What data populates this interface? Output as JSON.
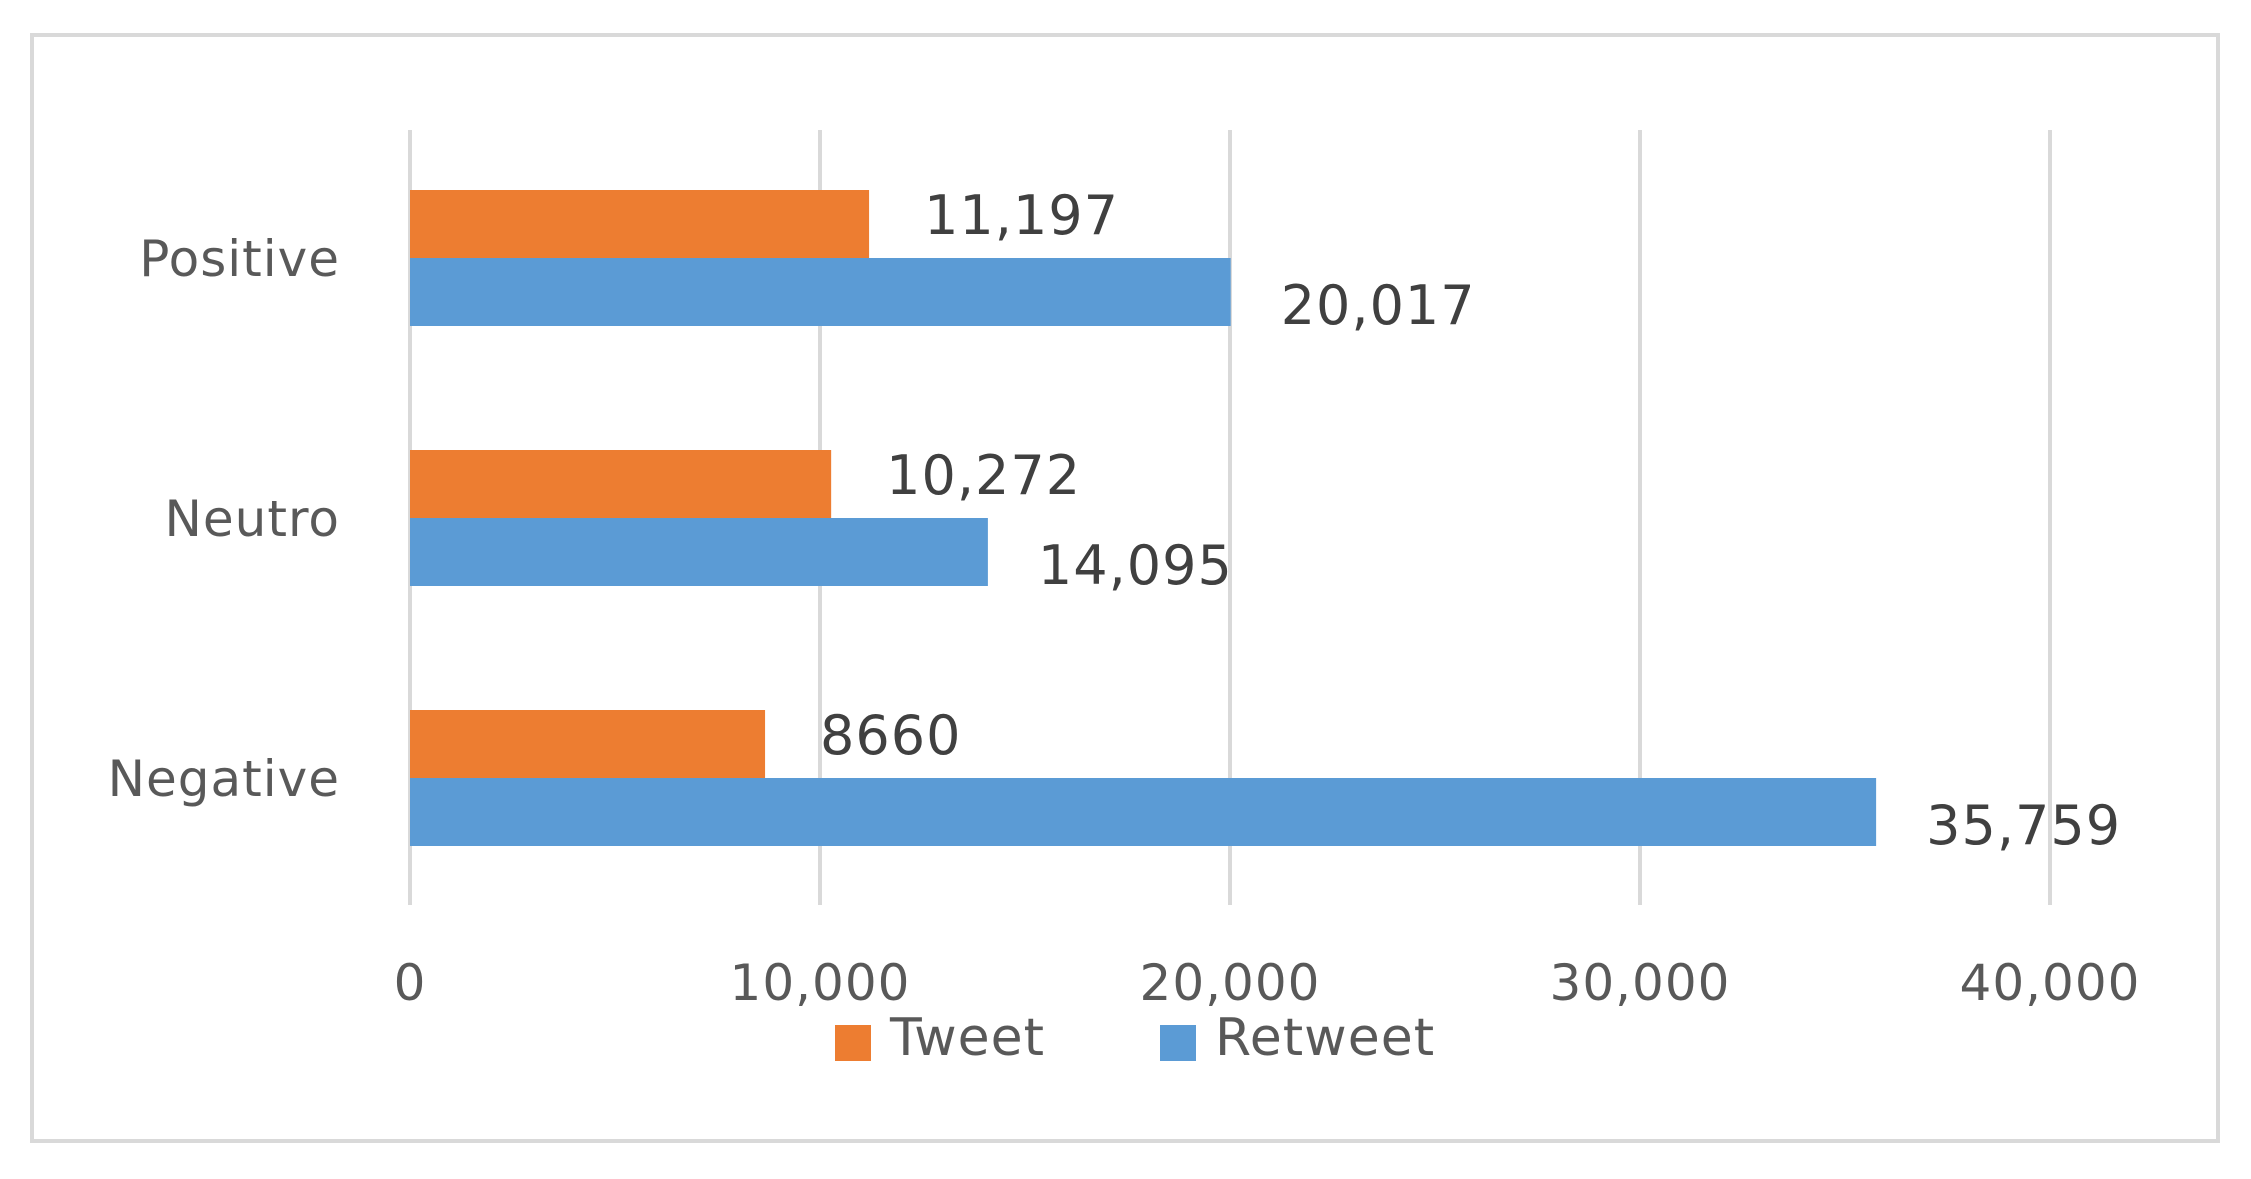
{
  "chart_data": {
    "type": "bar",
    "orientation": "horizontal",
    "categories": [
      "Positive",
      "Neutro",
      "Negative"
    ],
    "series": [
      {
        "name": "Tweet",
        "color": "#ed7d31",
        "values": [
          11197,
          10272,
          8660
        ],
        "labels": [
          "11,197",
          "10,272",
          "8660"
        ]
      },
      {
        "name": "Retweet",
        "color": "#5b9bd5",
        "values": [
          20017,
          14095,
          35759
        ],
        "labels": [
          "20,017",
          "14,095",
          "35,759"
        ]
      }
    ],
    "xlim": [
      0,
      40000
    ],
    "xticks": [
      0,
      10000,
      20000,
      30000,
      40000
    ],
    "xtick_labels": [
      "0",
      "10,000",
      "20,000",
      "30,000",
      "40,000"
    ],
    "grid": "vertical",
    "legend_position": "bottom",
    "title": "",
    "xlabel": "",
    "ylabel": ""
  }
}
